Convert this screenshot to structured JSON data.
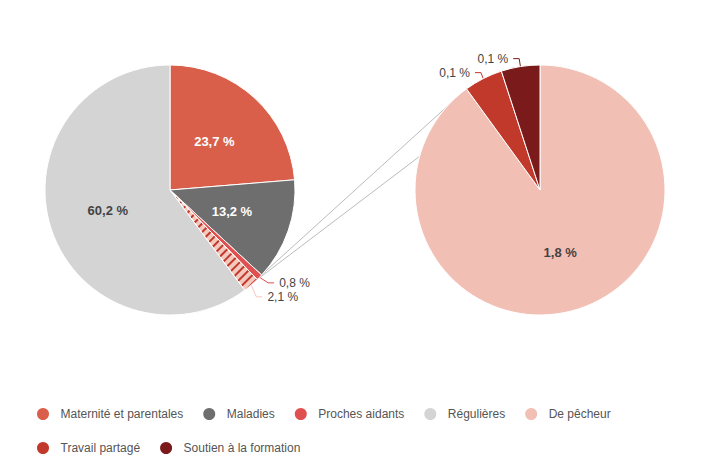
{
  "chart_data": [
    {
      "type": "pie",
      "categories": [
        "Maternité et parentales",
        "Maladies",
        "Proches aidants",
        null,
        "Régulières"
      ],
      "values": [
        23.7,
        13.2,
        0.8,
        2.1,
        60.2
      ],
      "value_labels": [
        "23,7 %",
        "13,2 %",
        "0,8 %",
        "2,1 %",
        "60,2 %"
      ],
      "colors": [
        "#d95f4b",
        "#6e6e6e",
        "#e05050",
        "#f5c8be",
        "#d4d4d4"
      ],
      "data_labels": true,
      "legend": "bottom"
    },
    {
      "type": "pie",
      "categories": [
        "De pêcheur",
        "Travail partagé",
        "Soutien à la formation"
      ],
      "values": [
        1.8,
        0.1,
        0.1
      ],
      "value_labels": [
        "1,8 %",
        "0,1 %",
        "0,1 %"
      ],
      "colors": [
        "#f2bfb5",
        "#c0392b",
        "#7b1a1a"
      ],
      "data_labels": true,
      "legend": "bottom"
    }
  ]
}
